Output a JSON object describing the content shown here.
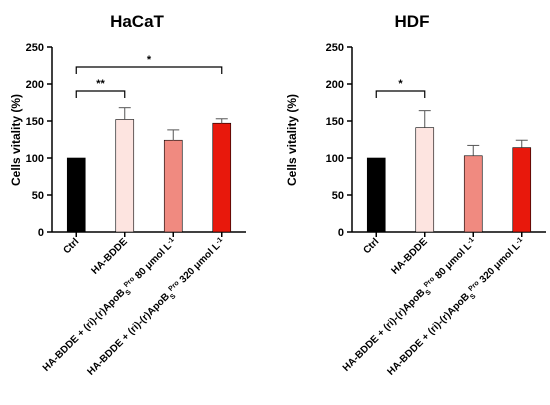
{
  "chart_data": [
    {
      "type": "bar",
      "title": "HaCaT",
      "ylabel": "Cells vitality (%)",
      "xlabel": "",
      "ylim": [
        0,
        250
      ],
      "yticks": [
        0,
        50,
        100,
        150,
        200,
        250
      ],
      "categories": [
        {
          "parts": [
            {
              "t": "Ctrl"
            }
          ]
        },
        {
          "parts": [
            {
              "t": "HA-BDDE"
            }
          ]
        },
        {
          "parts": [
            {
              "t": "HA-BDDE + (ri)-(r)ApoB"
            },
            {
              "t": "S",
              "sub": true
            },
            {
              "t": "Pro",
              "sup": true
            },
            {
              "t": " 80 μmol L"
            },
            {
              "t": "-1",
              "sup": true
            }
          ]
        },
        {
          "parts": [
            {
              "t": "HA-BDDE + (ri)-(r)ApoB"
            },
            {
              "t": "S",
              "sub": true
            },
            {
              "t": "Pro",
              "sup": true
            },
            {
              "t": " 320 μmol L"
            },
            {
              "t": "-1",
              "sup": true
            }
          ]
        }
      ],
      "values": [
        100,
        152,
        124,
        147
      ],
      "errors": [
        0,
        16,
        14,
        6
      ],
      "colors": [
        "#000000",
        "#fde4e0",
        "#f08a80",
        "#e8180c"
      ],
      "significance": [
        {
          "from": 0,
          "to": 1,
          "label": "**"
        },
        {
          "from": 0,
          "to": 3,
          "label": "*"
        }
      ]
    },
    {
      "type": "bar",
      "title": "HDF",
      "ylabel": "Cells vitality (%)",
      "xlabel": "",
      "ylim": [
        0,
        250
      ],
      "yticks": [
        0,
        50,
        100,
        150,
        200,
        250
      ],
      "categories": [
        {
          "parts": [
            {
              "t": "Ctrl"
            }
          ]
        },
        {
          "parts": [
            {
              "t": "HA-BDDE"
            }
          ]
        },
        {
          "parts": [
            {
              "t": "HA-BDDE + (ri)-(r)ApoB"
            },
            {
              "t": "S",
              "sub": true
            },
            {
              "t": "Pro",
              "sup": true
            },
            {
              "t": " 80 μmol L"
            },
            {
              "t": "-1",
              "sup": true
            }
          ]
        },
        {
          "parts": [
            {
              "t": "HA-BDDE + (ri)-(r)ApoB"
            },
            {
              "t": "S",
              "sub": true
            },
            {
              "t": "Pro",
              "sup": true
            },
            {
              "t": " 320 μmol L"
            },
            {
              "t": "-1",
              "sup": true
            }
          ]
        }
      ],
      "values": [
        100,
        141,
        103,
        114
      ],
      "errors": [
        0,
        23,
        14,
        10
      ],
      "colors": [
        "#000000",
        "#fde4e0",
        "#f08a80",
        "#e8180c"
      ],
      "significance": [
        {
          "from": 0,
          "to": 1,
          "label": "*"
        }
      ]
    }
  ]
}
